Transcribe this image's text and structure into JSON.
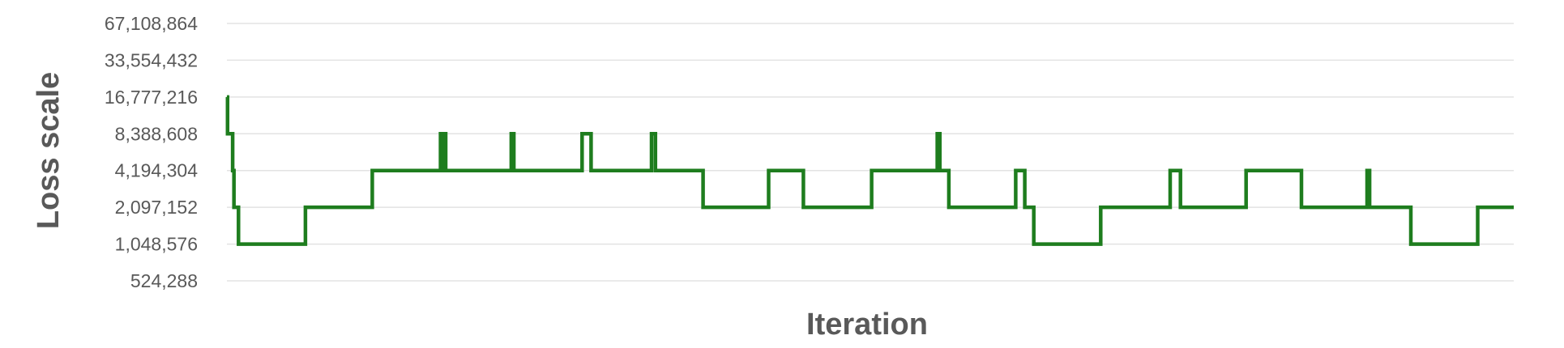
{
  "chart_data": {
    "type": "line",
    "title": "",
    "xlabel": "Iteration",
    "ylabel": "Loss scale",
    "y_scale": "log2",
    "ylim": [
      524288,
      67108864
    ],
    "yticks": [
      67108864,
      33554432,
      16777216,
      8388608,
      4194304,
      2097152,
      1048576,
      524288
    ],
    "ytick_labels": [
      "67,108,864",
      "33,554,432",
      "16,777,216",
      "8,388,608",
      "4,194,304",
      "2,097,152",
      "1,048,576",
      "524,288"
    ],
    "xlim": [
      0,
      1000
    ],
    "grid": true,
    "legend": false,
    "color": "#1e7d1e",
    "series": [
      {
        "step_points": [
          [
            0,
            16777216
          ],
          [
            0.5,
            8388608
          ],
          [
            4.5,
            4194304
          ],
          [
            5.5,
            2097152
          ],
          [
            9,
            1048576
          ],
          [
            61,
            2097152
          ],
          [
            113,
            4194304
          ],
          [
            166,
            8388608
          ],
          [
            168,
            4194304
          ],
          [
            169,
            8388608
          ],
          [
            170,
            4194304
          ],
          [
            221,
            8388608
          ],
          [
            223,
            4194304
          ],
          [
            276,
            8388608
          ],
          [
            283,
            4194304
          ],
          [
            330,
            8388608
          ],
          [
            333,
            4194304
          ],
          [
            370,
            2097152
          ],
          [
            421,
            4194304
          ],
          [
            448,
            2097152
          ],
          [
            501,
            4194304
          ],
          [
            552,
            8388608
          ],
          [
            554,
            4194304
          ],
          [
            561,
            2097152
          ],
          [
            613,
            4194304
          ],
          [
            620,
            2097152
          ],
          [
            627,
            1048576
          ],
          [
            679,
            2097152
          ],
          [
            733,
            4194304
          ],
          [
            741,
            2097152
          ],
          [
            792,
            4194304
          ],
          [
            835,
            2097152
          ],
          [
            886,
            4194304
          ],
          [
            888,
            2097152
          ],
          [
            920,
            1048576
          ],
          [
            972,
            2097152
          ],
          [
            1000,
            2097152
          ]
        ]
      }
    ]
  }
}
